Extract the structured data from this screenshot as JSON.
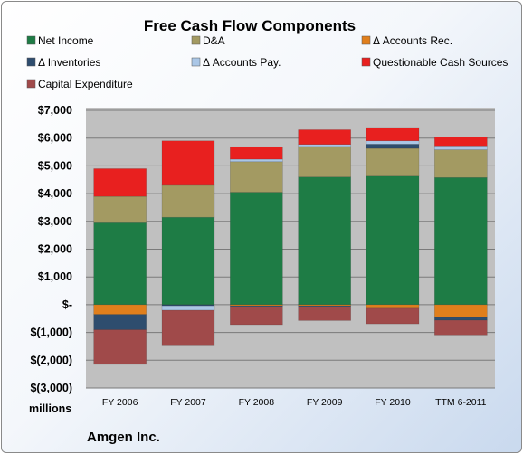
{
  "chart_data": {
    "type": "bar",
    "stacked": true,
    "title": "Free Cash Flow Components",
    "ylabel": "",
    "xlabel": "",
    "unit_label": "millions",
    "company": "Amgen Inc.",
    "ylim": [
      -3000,
      7000
    ],
    "yticks": [
      -3000,
      -2000,
      -1000,
      0,
      1000,
      2000,
      3000,
      4000,
      5000,
      6000,
      7000
    ],
    "ytick_labels": [
      "$(3,000)",
      "$(2,000)",
      "$(1,000)",
      "$-",
      "$1,000",
      "$2,000",
      "$3,000",
      "$4,000",
      "$5,000",
      "$6,000",
      "$7,000"
    ],
    "categories": [
      "FY 2006",
      "FY 2007",
      "FY 2008",
      "FY 2009",
      "FY 2010",
      "TTM 6-2011"
    ],
    "grid": true,
    "legend_position": "top",
    "series": [
      {
        "name": "Net Income",
        "color": "#1e7c45",
        "values": [
          2950,
          3150,
          4050,
          4600,
          4630,
          4580
        ]
      },
      {
        "name": "D&A",
        "color": "#a39a62",
        "values": [
          950,
          1150,
          1100,
          1100,
          1000,
          1000
        ]
      },
      {
        "name": "Δ Accounts Rec.",
        "color": "#e07f1c",
        "values": [
          -350,
          0,
          -40,
          -40,
          -130,
          -460
        ]
      },
      {
        "name": "Δ Inventories",
        "color": "#2e4d6e",
        "values": [
          -550,
          -40,
          -40,
          -40,
          150,
          -100
        ]
      },
      {
        "name": "Δ Accounts Pay.",
        "color": "#aac6e6",
        "values": [
          0,
          -160,
          90,
          70,
          120,
          140
        ]
      },
      {
        "name": "Questionable Cash Sources",
        "color": "#e8201f",
        "values": [
          1000,
          1600,
          450,
          530,
          480,
          320
        ]
      },
      {
        "name": "Capital Expenditure",
        "color": "#a04a4a",
        "values": [
          -1250,
          -1280,
          -640,
          -490,
          -560,
          -530
        ]
      }
    ]
  }
}
